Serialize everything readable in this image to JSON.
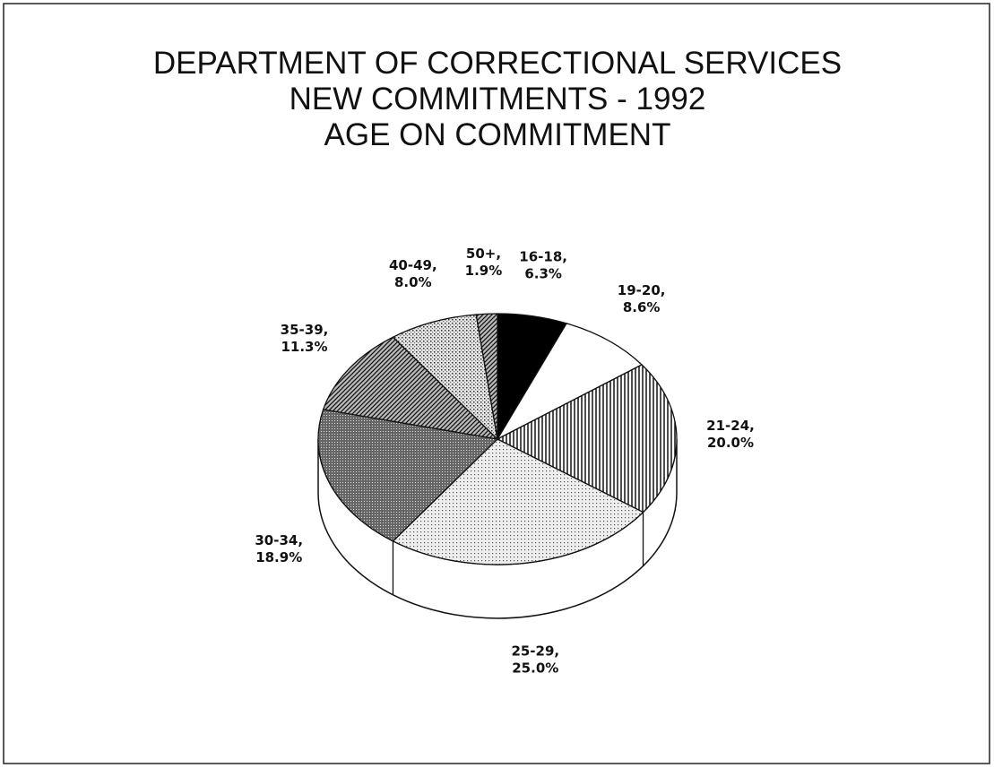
{
  "chart_data": {
    "type": "pie",
    "title": [
      "DEPARTMENT OF CORRECTIONAL SERVICES",
      "NEW COMMITMENTS - 1992",
      "AGE ON COMMITMENT"
    ],
    "categories": [
      "16-18,",
      "19-20,",
      "21-24,",
      "25-29,",
      "30-34,",
      "35-39,",
      "40-49,",
      "50+,"
    ],
    "values": [
      6.3,
      8.6,
      20.0,
      25.0,
      18.9,
      11.3,
      8.0,
      1.9
    ],
    "value_labels": [
      "6.3%",
      "8.6%",
      "20.0%",
      "25.0%",
      "18.9%",
      "11.3%",
      "8.0%",
      "1.9%"
    ],
    "patterns": [
      "solid",
      "none",
      "vertical",
      "dots-light",
      "dots-dense",
      "diagonal",
      "dots",
      "diagonal"
    ],
    "three_d": true
  }
}
